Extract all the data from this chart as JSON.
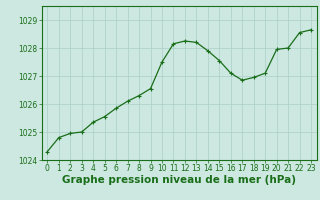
{
  "x": [
    0,
    1,
    2,
    3,
    4,
    5,
    6,
    7,
    8,
    9,
    10,
    11,
    12,
    13,
    14,
    15,
    16,
    17,
    18,
    19,
    20,
    21,
    22,
    23
  ],
  "y": [
    1024.3,
    1024.8,
    1024.95,
    1025.0,
    1025.35,
    1025.55,
    1025.85,
    1026.1,
    1026.3,
    1026.55,
    1027.5,
    1028.15,
    1028.25,
    1028.2,
    1027.9,
    1027.55,
    1027.1,
    1026.85,
    1026.95,
    1027.1,
    1027.95,
    1028.0,
    1028.55,
    1028.65
  ],
  "line_color": "#1a6e1a",
  "marker": "+",
  "marker_size": 3,
  "marker_linewidth": 0.8,
  "linewidth": 0.9,
  "background_color": "#cce8e0",
  "grid_color": "#aacfc8",
  "xlabel": "Graphe pression niveau de la mer (hPa)",
  "xlabel_fontsize": 7.5,
  "xlabel_bold": true,
  "ylim": [
    1024.0,
    1029.5
  ],
  "xlim": [
    -0.5,
    23.5
  ],
  "yticks": [
    1024,
    1025,
    1026,
    1027,
    1028,
    1029
  ],
  "xticks": [
    0,
    1,
    2,
    3,
    4,
    5,
    6,
    7,
    8,
    9,
    10,
    11,
    12,
    13,
    14,
    15,
    16,
    17,
    18,
    19,
    20,
    21,
    22,
    23
  ],
  "tick_fontsize": 5.5,
  "axis_color": "#1a6e1a",
  "spine_color": "#1a6e1a"
}
